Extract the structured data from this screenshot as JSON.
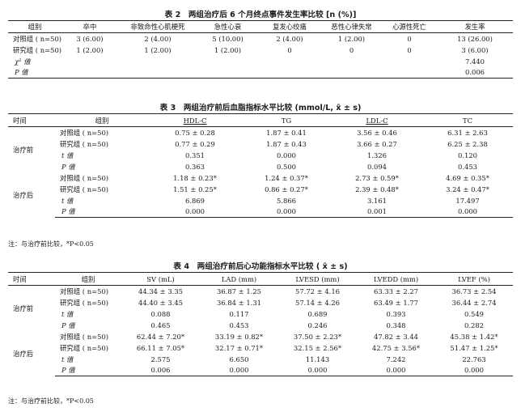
{
  "table2": {
    "caption": "表 2　两组治疗后 6 个月终点事件发生率比较 [n (%)]",
    "headers": [
      "组别",
      "卒中",
      "非致命性心肌梗死",
      "急性心衰",
      "复发心绞痛",
      "恶性心律失常",
      "心源性死亡",
      "发生率"
    ],
    "rows": [
      {
        "group": "对照组 ( n=50)",
        "cells": [
          "3 (6.00)",
          "2 (4.00)",
          "5 (10.00)",
          "2 (4.00)",
          "1 (2.00)",
          "0",
          "13 (26.00)"
        ]
      },
      {
        "group": "研究组 ( n=50)",
        "cells": [
          "1 (2.00)",
          "1 (2.00)",
          "1 (2.00)",
          "0",
          "0",
          "0",
          "3 (6.00)"
        ]
      },
      {
        "group": "χ² 值",
        "cells": [
          "",
          "",
          "",
          "",
          "",
          "",
          "7.440"
        ]
      },
      {
        "group": "P 值",
        "cells": [
          "",
          "",
          "",
          "",
          "",
          "",
          "0.006"
        ]
      }
    ]
  },
  "table3": {
    "caption": "表 3　两组治疗前后血脂指标水平比较 (mmol/L,  x̄ ± s)",
    "headers": [
      "时间",
      "组别",
      "HDL-C",
      "TG",
      "LDL-C",
      "TC"
    ],
    "periods": [
      {
        "label": "治疗前",
        "rows": [
          {
            "group": "对照组 ( n=50)",
            "cells": [
              "0.75 ± 0.28",
              "1.87 ± 0.41",
              "3.56 ± 0.46",
              "6.31 ± 2.63"
            ]
          },
          {
            "group": "研究组 ( n=50)",
            "cells": [
              "0.77 ± 0.29",
              "1.87 ± 0.43",
              "3.66 ± 0.27",
              "6.25 ± 2.38"
            ]
          },
          {
            "group": "t 值",
            "cells": [
              "0.351",
              "0.000",
              "1.326",
              "0.120"
            ]
          },
          {
            "group": "P 值",
            "cells": [
              "0.363",
              "0.500",
              "0.094",
              "0.453"
            ]
          }
        ]
      },
      {
        "label": "治疗后",
        "rows": [
          {
            "group": "对照组 ( n=50)",
            "cells": [
              "1.18 ± 0.23*",
              "1.24 ± 0.37*",
              "2.73 ± 0.59*",
              "4.69 ± 0.35*"
            ]
          },
          {
            "group": "研究组 ( n=50)",
            "cells": [
              "1.51 ± 0.25*",
              "0.86 ± 0.27*",
              "2.39 ± 0.48*",
              "3.24 ± 0.47*"
            ]
          },
          {
            "group": "t 值",
            "cells": [
              "6.869",
              "5.866",
              "3.161",
              "17.497"
            ]
          },
          {
            "group": "P 值",
            "cells": [
              "0.000",
              "0.000",
              "0.001",
              "0.000"
            ]
          }
        ]
      }
    ],
    "note": "注：与治疗前比较，*P<0.05"
  },
  "table4": {
    "caption": "表 4　两组治疗前后心功能指标水平比较 ( x̄ ± s)",
    "headers": [
      "时间",
      "组别",
      "SV (mL)",
      "LAD (mm)",
      "LVESD (mm)",
      "LVEDD (mm)",
      "LVEF (%)"
    ],
    "periods": [
      {
        "label": "治疗前",
        "rows": [
          {
            "group": "对照组 ( n=50)",
            "cells": [
              "44.34 ± 3.35",
              "36.87 ± 1.25",
              "57.72 ± 4.16",
              "63.33 ± 2.27",
              "36.73 ± 2.54"
            ]
          },
          {
            "group": "研究组 ( n=50)",
            "cells": [
              "44.40 ± 3.45",
              "36.84 ± 1.31",
              "57.14 ± 4.26",
              "63.49 ± 1.77",
              "36.44 ± 2.74"
            ]
          },
          {
            "group": "t 值",
            "cells": [
              "0.088",
              "0.117",
              "0.689",
              "0.393",
              "0.549"
            ]
          },
          {
            "group": "P 值",
            "cells": [
              "0.465",
              "0.453",
              "0.246",
              "0.348",
              "0.282"
            ]
          }
        ]
      },
      {
        "label": "治疗后",
        "rows": [
          {
            "group": "对照组 ( n=50)",
            "cells": [
              "62.44 ± 7.20*",
              "33.19 ± 0.82*",
              "37.50 ± 2.23*",
              "47.82 ± 3.44",
              "45.38 ± 1.42*"
            ]
          },
          {
            "group": "研究组 ( n=50)",
            "cells": [
              "66.11 ± 7.05*",
              "32.17 ± 0.71*",
              "32.15 ± 2.56*",
              "42.75 ± 3.56*",
              "51.47 ± 1.25*"
            ]
          },
          {
            "group": "t 值",
            "cells": [
              "2.575",
              "6.650",
              "11.143",
              "7.242",
              "22.763"
            ]
          },
          {
            "group": "P 值",
            "cells": [
              "0.006",
              "0.000",
              "0.000",
              "0.000",
              "0.000"
            ]
          }
        ]
      }
    ],
    "note": "注：与治疗前比较，*P<0.05"
  }
}
